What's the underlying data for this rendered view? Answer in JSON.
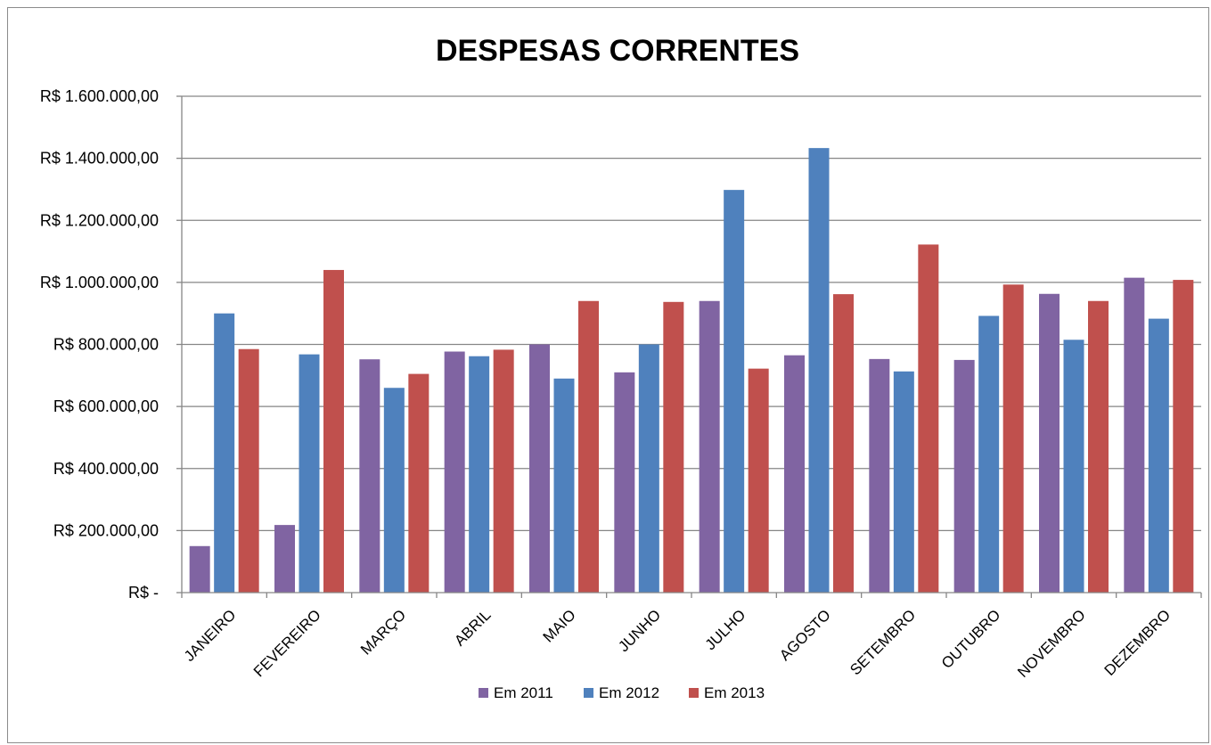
{
  "chart_data": {
    "type": "bar",
    "title": "DESPESAS CORRENTES",
    "xlabel": "",
    "ylabel": "",
    "categories": [
      "JANEIRO",
      "FEVEREIRO",
      "MARÇO",
      "ABRIL",
      "MAIO",
      "JUNHO",
      "JULHO",
      "AGOSTO",
      "SETEMBRO",
      "OUTUBRO",
      "NOVEMBRO",
      "DEZEMBRO"
    ],
    "series": [
      {
        "name": "Em 2011",
        "color": "#8064a2",
        "values": [
          150000,
          218000,
          752000,
          777000,
          800000,
          710000,
          940000,
          765000,
          753000,
          750000,
          963000,
          1015000
        ]
      },
      {
        "name": "Em 2012",
        "color": "#4f81bd",
        "values": [
          900000,
          768000,
          660000,
          762000,
          690000,
          800000,
          1298000,
          1433000,
          713000,
          892000,
          815000,
          883000
        ]
      },
      {
        "name": "Em 2013",
        "color": "#c0504d",
        "values": [
          785000,
          1040000,
          705000,
          783000,
          940000,
          937000,
          722000,
          962000,
          1122000,
          993000,
          940000,
          1008000
        ]
      }
    ],
    "ylim": [
      0,
      1600000
    ],
    "y_ticks": [
      0,
      200000,
      400000,
      600000,
      800000,
      1000000,
      1200000,
      1400000,
      1600000
    ],
    "y_tick_labels": [
      "R$ -",
      "R$ 200.000,00",
      "R$ 400.000,00",
      "R$ 600.000,00",
      "R$ 800.000,00",
      "R$ 1.000.000,00",
      "R$ 1.200.000,00",
      "R$ 1.400.000,00",
      "R$ 1.600.000,00"
    ],
    "grid": true,
    "legend_position": "bottom",
    "colors": {
      "gridline": "#868686",
      "axis": "#868686",
      "border": "#8c8c8c"
    }
  }
}
